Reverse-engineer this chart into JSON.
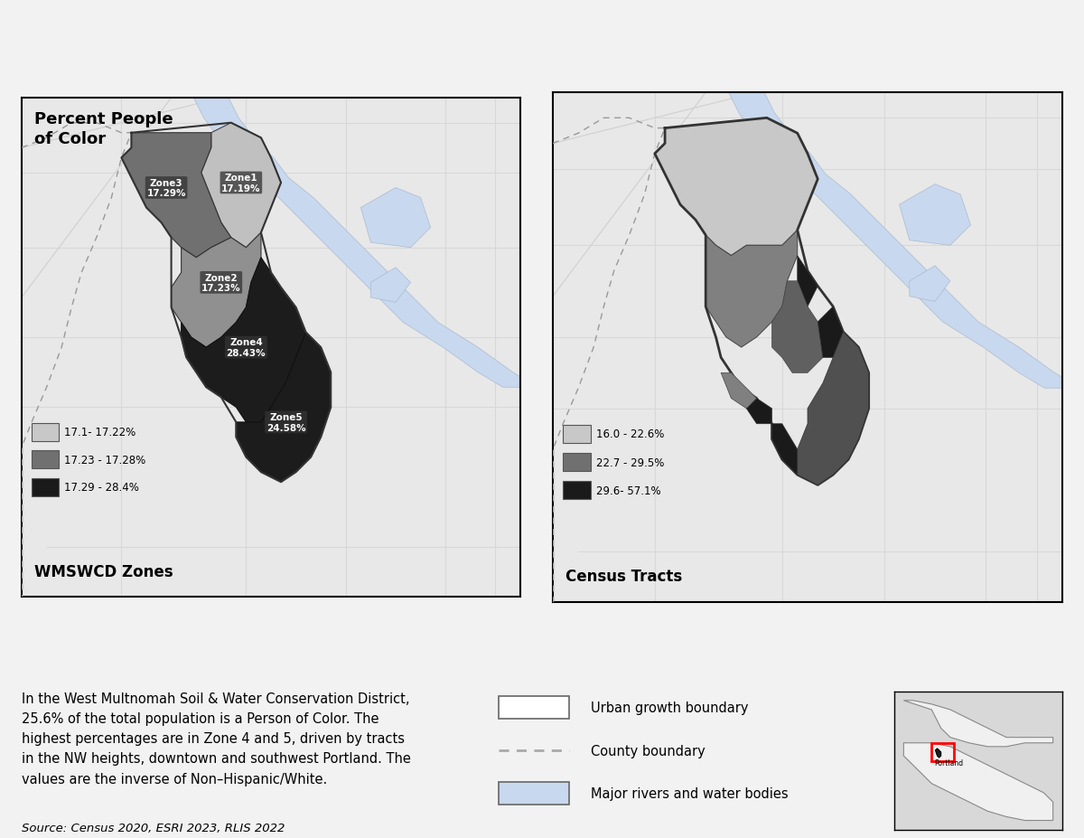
{
  "bg_color": "#f2f2f2",
  "map_bg": "#e4e4e4",
  "water_color": "#c8d8ee",
  "road_color": "#d5d5d5",
  "title": "Percent People\nof Color",
  "left_subtitle": "WMSWCD Zones",
  "right_subtitle": "Census Tracts",
  "left_legend": [
    {
      "color": "#c8c8c8",
      "label": "17.1- 17.22%"
    },
    {
      "color": "#707070",
      "label": "17.23 - 17.28%"
    },
    {
      "color": "#1a1a1a",
      "label": "17.29 - 28.4%"
    }
  ],
  "right_legend": [
    {
      "color": "#c8c8c8",
      "label": "16.0 - 22.6%"
    },
    {
      "color": "#707070",
      "label": "22.7 - 29.5%"
    },
    {
      "color": "#1a1a1a",
      "label": "29.6- 57.1%"
    }
  ],
  "zone_labels": {
    "zone1": "Zone1\n17.19%",
    "zone2": "Zone2\n17.23%",
    "zone3": "Zone3\n17.29%",
    "zone4": "Zone4\n28.43%",
    "zone5": "Zone5\n24.58%"
  },
  "description_text": "In the West Multnomah Soil & Water Conservation District,\n25.6% of the total population is a Person of Color. The\nhighest percentages are in Zone 4 and 5, driven by tracts\nin the NW heights, downtown and southwest Portland. The\nvalues are the inverse of Non–Hispanic/White.",
  "source_text": "Source: Census 2020, ESRI 2023, RLIS 2022",
  "legend_items": [
    {
      "type": "box",
      "color": "#ffffff",
      "label": "Urban growth boundary"
    },
    {
      "type": "dashed",
      "color": "#aaaaaa",
      "label": "County boundary"
    },
    {
      "type": "box",
      "color": "#c8d8ee",
      "label": "Major rivers and water bodies"
    }
  ]
}
